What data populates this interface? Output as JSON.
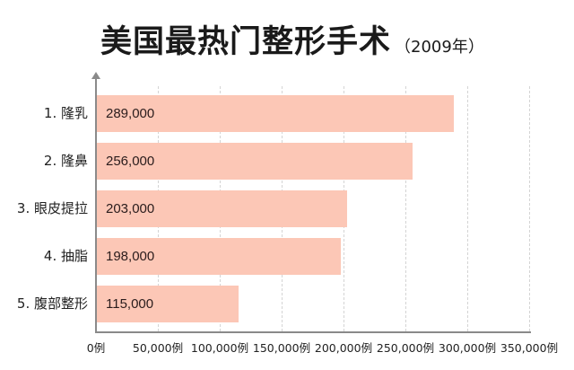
{
  "title": {
    "main": "美国最热门整形手术",
    "sub": "（2009年）"
  },
  "colors": {
    "bar": "#fcc7b6",
    "axis": "#8a8a8a",
    "grid": "#d4d4d4"
  },
  "categories": [
    {
      "label": "1. 隆乳",
      "value_label": "289,000"
    },
    {
      "label": "2. 隆鼻",
      "value_label": "256,000"
    },
    {
      "label": "3. 眼皮提拉",
      "value_label": "203,000"
    },
    {
      "label": "4. 抽脂",
      "value_label": "198,000"
    },
    {
      "label": "5. 腹部整形",
      "value_label": "115,000"
    }
  ],
  "x_ticks": [
    "0例",
    "50,000例",
    "100,000例",
    "150,000例",
    "200,000例",
    "250,000例",
    "300,000例",
    "350,000例"
  ],
  "chart_data": {
    "type": "bar",
    "orientation": "horizontal",
    "title": "美国最热门整形手术（2009年）",
    "categories": [
      "1. 隆乳",
      "2. 隆鼻",
      "3. 眼皮提拉",
      "4. 抽脂",
      "5. 腹部整形"
    ],
    "values": [
      289000,
      256000,
      203000,
      198000,
      115000
    ],
    "data_labels": [
      "289,000",
      "256,000",
      "203,000",
      "198,000",
      "115,000"
    ],
    "xlabel": "",
    "ylabel": "",
    "x_unit": "例",
    "xlim": [
      0,
      350000
    ],
    "x_ticks": [
      0,
      50000,
      100000,
      150000,
      200000,
      250000,
      300000,
      350000
    ],
    "x_tick_labels": [
      "0例",
      "50,000例",
      "100,000例",
      "150,000例",
      "200,000例",
      "250,000例",
      "300,000例",
      "350,000例"
    ],
    "grid": "vertical dashed",
    "legend": "none",
    "bar_color": "#fcc7b6"
  }
}
